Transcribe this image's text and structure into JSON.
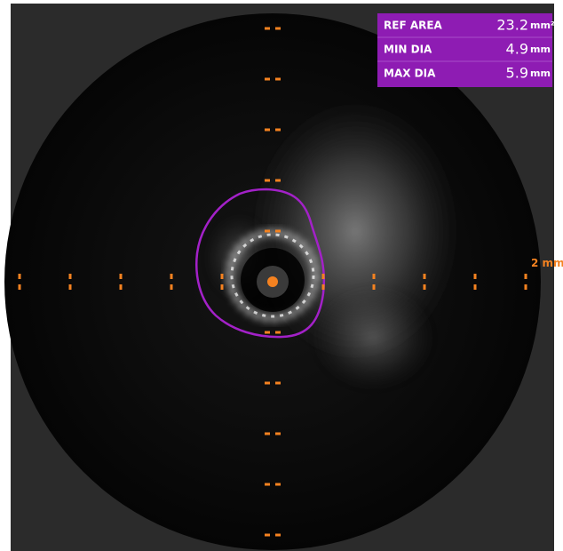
{
  "measurements": [
    {
      "label": "REF AREA",
      "value": 23.2,
      "unit": "mm²"
    },
    {
      "label": "MIN DIA",
      "value": 4.9,
      "unit": "mm"
    },
    {
      "label": "MAX DIA",
      "value": 5.9,
      "unit": "mm"
    }
  ],
  "scale_label": "2 mm"
}
